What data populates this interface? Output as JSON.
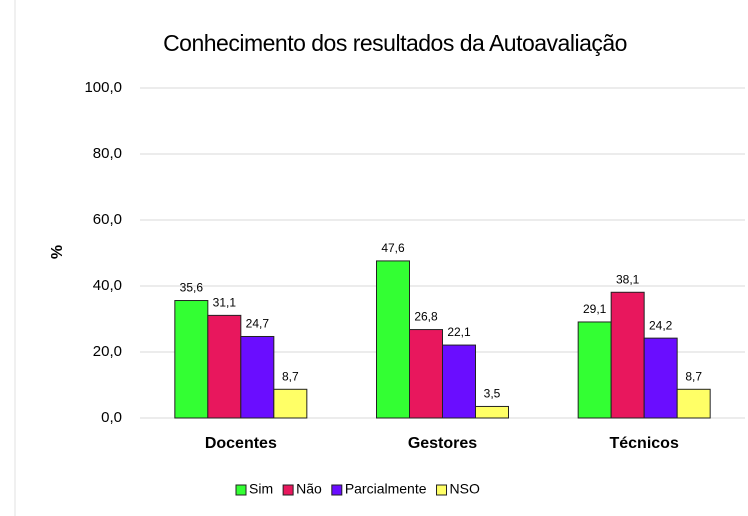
{
  "chart_data": {
    "type": "bar",
    "title": "Conhecimento dos resultados da Autoavaliação",
    "ylabel": "%",
    "categories": [
      "Docentes",
      "Gestores",
      "Técnicos"
    ],
    "series": [
      {
        "name": "Sim",
        "color": "#33ff33",
        "values": [
          35.6,
          47.6,
          29.1
        ],
        "value_labels": [
          "35,6",
          "47,6",
          "29,1"
        ]
      },
      {
        "name": "Não",
        "color": "#e8175d",
        "values": [
          31.1,
          26.8,
          38.1
        ],
        "value_labels": [
          "31,1",
          "26,8",
          "38,1"
        ]
      },
      {
        "name": "Parcialmente",
        "color": "#6a0dff",
        "values": [
          24.7,
          22.1,
          24.2
        ],
        "value_labels": [
          "24,7",
          "22,1",
          "24,2"
        ]
      },
      {
        "name": "NSO",
        "color": "#ffff66",
        "values": [
          8.7,
          3.5,
          8.7
        ],
        "value_labels": [
          "8,7",
          "3,5",
          "8,7"
        ]
      }
    ],
    "ylim": [
      0,
      100
    ],
    "yticks": [
      {
        "value": 0,
        "label": "0,0"
      },
      {
        "value": 20,
        "label": "20,0"
      },
      {
        "value": 40,
        "label": "40,0"
      },
      {
        "value": 60,
        "label": "60,0"
      },
      {
        "value": 80,
        "label": "80,0"
      },
      {
        "value": 100,
        "label": "100,0"
      }
    ],
    "grid": true,
    "legend": "bottom"
  }
}
